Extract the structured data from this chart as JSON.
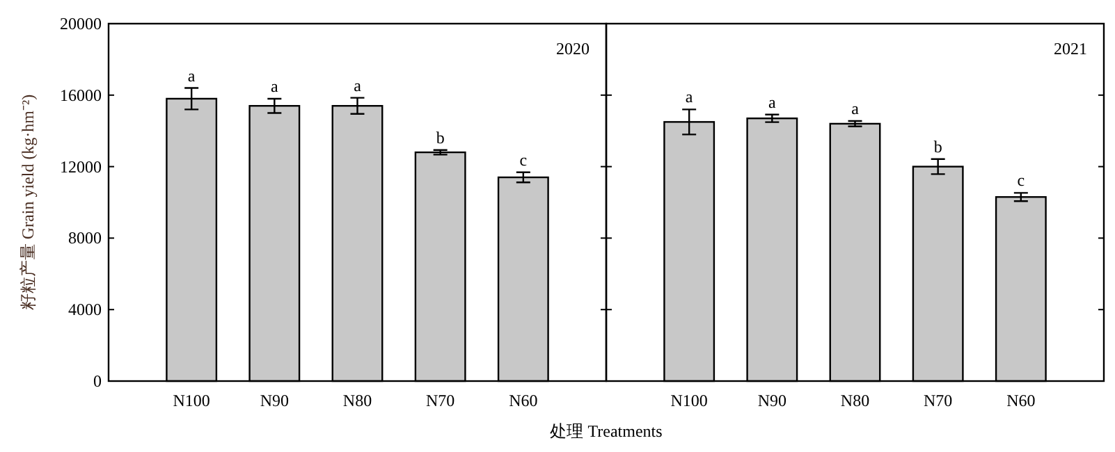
{
  "chart_data": [
    {
      "type": "bar",
      "title": "2020",
      "xlabel": "处理 Treatments",
      "ylabel": "籽粒产量 Grain yield (kg·hm⁻²)",
      "categories": [
        "N100",
        "N90",
        "N80",
        "N70",
        "N60"
      ],
      "values": [
        15800,
        15400,
        15400,
        12800,
        11400
      ],
      "errors": [
        600,
        400,
        450,
        130,
        280
      ],
      "color": "#c8c8c8",
      "ylim": [
        0,
        20000
      ],
      "yticks": [
        0,
        4000,
        8000,
        12000,
        16000,
        20000
      ],
      "annotations": [
        {
          "text": "a",
          "x": "N100",
          "y": 16400
        },
        {
          "text": "a",
          "x": "N90",
          "y": 15800
        },
        {
          "text": "a",
          "x": "N80",
          "y": 15850
        },
        {
          "text": "b",
          "x": "N70",
          "y": 12930
        },
        {
          "text": "c",
          "x": "N60",
          "y": 11680
        }
      ]
    },
    {
      "type": "bar",
      "title": "2021",
      "categories": [
        "N100",
        "N90",
        "N80",
        "N70",
        "N60"
      ],
      "values": [
        14500,
        14700,
        14400,
        12000,
        10300
      ],
      "errors": [
        700,
        210,
        150,
        420,
        230
      ],
      "color": "#c8c8c8",
      "ylim": [
        0,
        20000
      ],
      "yticks": [
        0,
        4000,
        8000,
        12000,
        16000,
        20000
      ],
      "tick_labels": "x",
      "annotations": [
        {
          "text": "a",
          "x": "N100",
          "y": 15200
        },
        {
          "text": "a",
          "x": "N90",
          "y": 14910
        },
        {
          "text": "a",
          "x": "N80",
          "y": 14550
        },
        {
          "text": "b",
          "x": "N70",
          "y": 12420
        },
        {
          "text": "c",
          "x": "N60",
          "y": 10530
        }
      ]
    }
  ]
}
